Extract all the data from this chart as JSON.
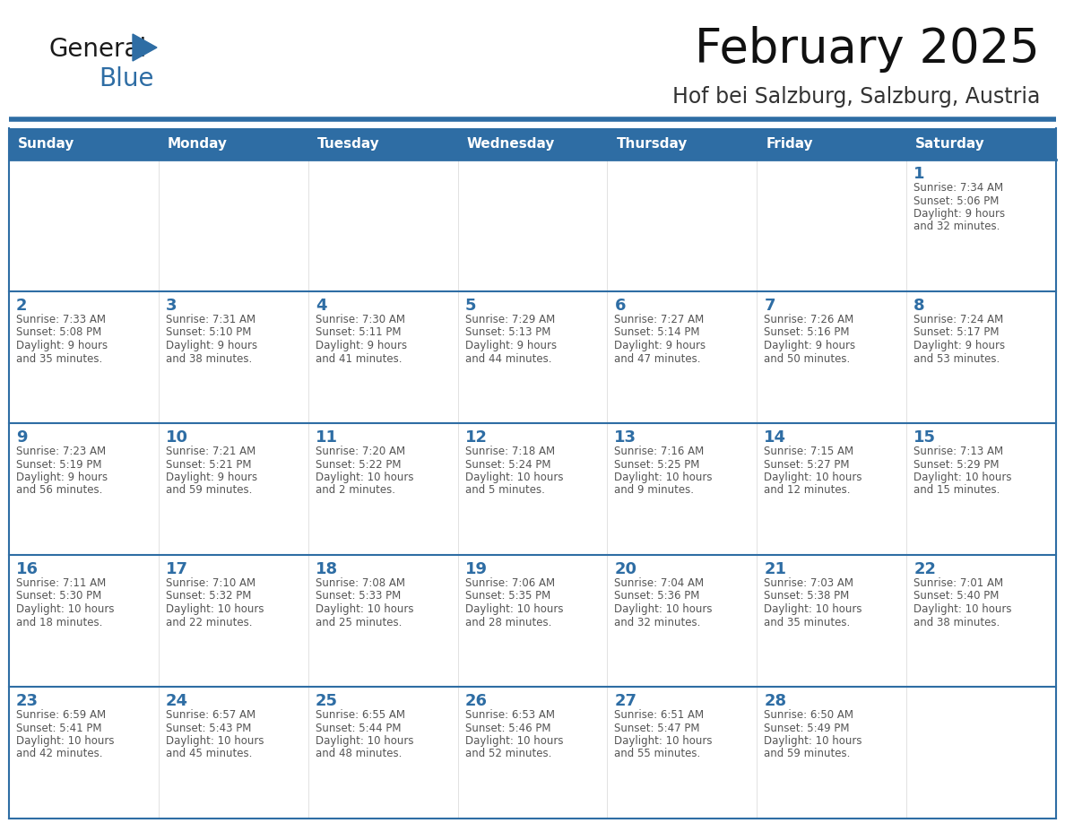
{
  "title": "February 2025",
  "subtitle": "Hof bei Salzburg, Salzburg, Austria",
  "days_of_week": [
    "Sunday",
    "Monday",
    "Tuesday",
    "Wednesday",
    "Thursday",
    "Friday",
    "Saturday"
  ],
  "header_bg": "#2E6DA4",
  "header_text": "#FFFFFF",
  "cell_bg": "#FFFFFF",
  "row1_bg": "#F0F0F0",
  "line_color": "#2E6DA4",
  "day_number_color": "#2E6DA4",
  "text_color": "#555555",
  "title_color": "#111111",
  "subtitle_color": "#333333",
  "weeks": [
    [
      {
        "day": null,
        "sunrise": null,
        "sunset": null,
        "daylight": null
      },
      {
        "day": null,
        "sunrise": null,
        "sunset": null,
        "daylight": null
      },
      {
        "day": null,
        "sunrise": null,
        "sunset": null,
        "daylight": null
      },
      {
        "day": null,
        "sunrise": null,
        "sunset": null,
        "daylight": null
      },
      {
        "day": null,
        "sunrise": null,
        "sunset": null,
        "daylight": null
      },
      {
        "day": null,
        "sunrise": null,
        "sunset": null,
        "daylight": null
      },
      {
        "day": 1,
        "sunrise": "7:34 AM",
        "sunset": "5:06 PM",
        "daylight": "9 hours\nand 32 minutes."
      }
    ],
    [
      {
        "day": 2,
        "sunrise": "7:33 AM",
        "sunset": "5:08 PM",
        "daylight": "9 hours\nand 35 minutes."
      },
      {
        "day": 3,
        "sunrise": "7:31 AM",
        "sunset": "5:10 PM",
        "daylight": "9 hours\nand 38 minutes."
      },
      {
        "day": 4,
        "sunrise": "7:30 AM",
        "sunset": "5:11 PM",
        "daylight": "9 hours\nand 41 minutes."
      },
      {
        "day": 5,
        "sunrise": "7:29 AM",
        "sunset": "5:13 PM",
        "daylight": "9 hours\nand 44 minutes."
      },
      {
        "day": 6,
        "sunrise": "7:27 AM",
        "sunset": "5:14 PM",
        "daylight": "9 hours\nand 47 minutes."
      },
      {
        "day": 7,
        "sunrise": "7:26 AM",
        "sunset": "5:16 PM",
        "daylight": "9 hours\nand 50 minutes."
      },
      {
        "day": 8,
        "sunrise": "7:24 AM",
        "sunset": "5:17 PM",
        "daylight": "9 hours\nand 53 minutes."
      }
    ],
    [
      {
        "day": 9,
        "sunrise": "7:23 AM",
        "sunset": "5:19 PM",
        "daylight": "9 hours\nand 56 minutes."
      },
      {
        "day": 10,
        "sunrise": "7:21 AM",
        "sunset": "5:21 PM",
        "daylight": "9 hours\nand 59 minutes."
      },
      {
        "day": 11,
        "sunrise": "7:20 AM",
        "sunset": "5:22 PM",
        "daylight": "10 hours\nand 2 minutes."
      },
      {
        "day": 12,
        "sunrise": "7:18 AM",
        "sunset": "5:24 PM",
        "daylight": "10 hours\nand 5 minutes."
      },
      {
        "day": 13,
        "sunrise": "7:16 AM",
        "sunset": "5:25 PM",
        "daylight": "10 hours\nand 9 minutes."
      },
      {
        "day": 14,
        "sunrise": "7:15 AM",
        "sunset": "5:27 PM",
        "daylight": "10 hours\nand 12 minutes."
      },
      {
        "day": 15,
        "sunrise": "7:13 AM",
        "sunset": "5:29 PM",
        "daylight": "10 hours\nand 15 minutes."
      }
    ],
    [
      {
        "day": 16,
        "sunrise": "7:11 AM",
        "sunset": "5:30 PM",
        "daylight": "10 hours\nand 18 minutes."
      },
      {
        "day": 17,
        "sunrise": "7:10 AM",
        "sunset": "5:32 PM",
        "daylight": "10 hours\nand 22 minutes."
      },
      {
        "day": 18,
        "sunrise": "7:08 AM",
        "sunset": "5:33 PM",
        "daylight": "10 hours\nand 25 minutes."
      },
      {
        "day": 19,
        "sunrise": "7:06 AM",
        "sunset": "5:35 PM",
        "daylight": "10 hours\nand 28 minutes."
      },
      {
        "day": 20,
        "sunrise": "7:04 AM",
        "sunset": "5:36 PM",
        "daylight": "10 hours\nand 32 minutes."
      },
      {
        "day": 21,
        "sunrise": "7:03 AM",
        "sunset": "5:38 PM",
        "daylight": "10 hours\nand 35 minutes."
      },
      {
        "day": 22,
        "sunrise": "7:01 AM",
        "sunset": "5:40 PM",
        "daylight": "10 hours\nand 38 minutes."
      }
    ],
    [
      {
        "day": 23,
        "sunrise": "6:59 AM",
        "sunset": "5:41 PM",
        "daylight": "10 hours\nand 42 minutes."
      },
      {
        "day": 24,
        "sunrise": "6:57 AM",
        "sunset": "5:43 PM",
        "daylight": "10 hours\nand 45 minutes."
      },
      {
        "day": 25,
        "sunrise": "6:55 AM",
        "sunset": "5:44 PM",
        "daylight": "10 hours\nand 48 minutes."
      },
      {
        "day": 26,
        "sunrise": "6:53 AM",
        "sunset": "5:46 PM",
        "daylight": "10 hours\nand 52 minutes."
      },
      {
        "day": 27,
        "sunrise": "6:51 AM",
        "sunset": "5:47 PM",
        "daylight": "10 hours\nand 55 minutes."
      },
      {
        "day": 28,
        "sunrise": "6:50 AM",
        "sunset": "5:49 PM",
        "daylight": "10 hours\nand 59 minutes."
      },
      {
        "day": null,
        "sunrise": null,
        "sunset": null,
        "daylight": null
      }
    ]
  ]
}
